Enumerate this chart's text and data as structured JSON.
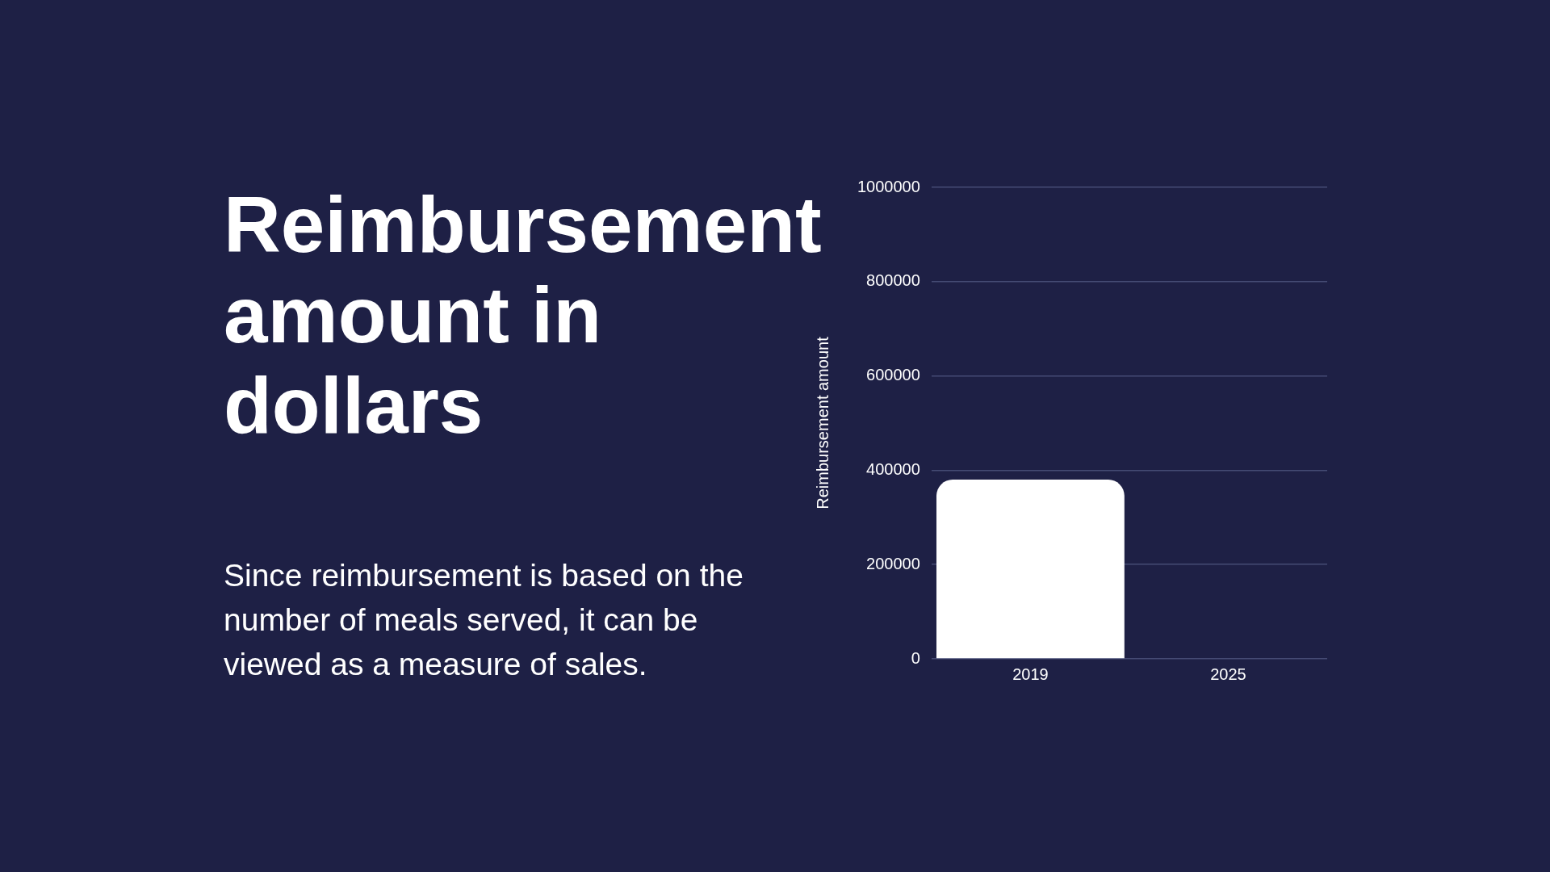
{
  "chart_data": {
    "type": "bar",
    "title": "Reimbursement amount in dollars",
    "subtitle": "Since reimbursement is based on the number of meals served, it can be viewed as a measure of sales.",
    "ylabel": "Reimbursement amount",
    "categories": [
      "2019",
      "2025"
    ],
    "values": [
      380000,
      null
    ],
    "color": "#ffffff",
    "ylim": [
      0,
      1000000
    ],
    "yticks": [
      0,
      200000,
      400000,
      600000,
      800000,
      1000000
    ],
    "grid": "y"
  }
}
